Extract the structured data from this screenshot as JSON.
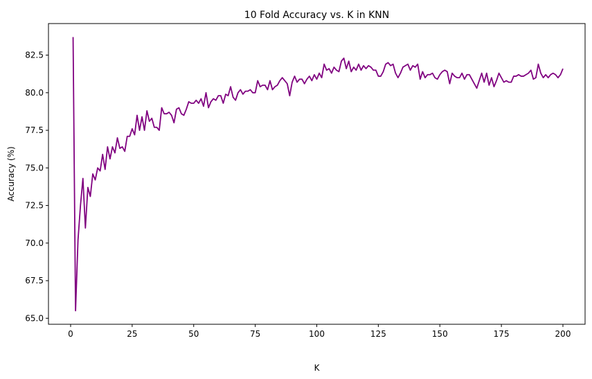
{
  "chart_data": {
    "type": "line",
    "title": "10 Fold Accuracy vs. K in KNN",
    "xlabel": "K",
    "ylabel": "Accuracy (%)",
    "xlim": [
      -9,
      209
    ],
    "ylim": [
      64.6,
      84.6
    ],
    "x_ticks": [
      0,
      25,
      50,
      75,
      100,
      125,
      150,
      175,
      200
    ],
    "y_ticks": [
      65.0,
      67.5,
      70.0,
      72.5,
      75.0,
      77.5,
      80.0,
      82.5
    ],
    "y_tick_labels": [
      "65.0",
      "67.5",
      "70.0",
      "72.5",
      "75.0",
      "77.5",
      "80.0",
      "82.5"
    ],
    "grid": false,
    "legend": "none",
    "series": [
      {
        "color": "#800080",
        "x_start": 1,
        "x_step": 1,
        "values": [
          83.7,
          65.5,
          70.2,
          72.5,
          74.3,
          71.0,
          73.7,
          73.1,
          74.6,
          74.2,
          75.0,
          74.8,
          75.9,
          74.9,
          76.4,
          75.6,
          76.4,
          76.0,
          77.0,
          76.3,
          76.4,
          76.1,
          77.1,
          77.1,
          77.6,
          77.2,
          78.5,
          77.5,
          78.4,
          77.5,
          78.8,
          78.1,
          78.3,
          77.7,
          77.7,
          77.5,
          79.0,
          78.6,
          78.6,
          78.7,
          78.5,
          78.0,
          78.9,
          79.0,
          78.6,
          78.5,
          78.9,
          79.4,
          79.3,
          79.3,
          79.5,
          79.3,
          79.6,
          79.1,
          80.0,
          79.0,
          79.4,
          79.6,
          79.5,
          79.8,
          79.8,
          79.3,
          79.9,
          79.8,
          80.4,
          79.7,
          79.5,
          80.0,
          80.2,
          79.9,
          80.1,
          80.1,
          80.2,
          80.0,
          80.0,
          80.8,
          80.4,
          80.5,
          80.5,
          80.2,
          80.8,
          80.2,
          80.4,
          80.5,
          80.8,
          81.0,
          80.8,
          80.6,
          79.8,
          80.7,
          81.1,
          80.7,
          80.9,
          80.9,
          80.6,
          80.9,
          81.1,
          80.8,
          81.2,
          80.9,
          81.3,
          81.0,
          81.9,
          81.5,
          81.6,
          81.3,
          81.7,
          81.5,
          81.4,
          82.1,
          82.3,
          81.6,
          82.1,
          81.4,
          81.7,
          81.5,
          81.9,
          81.5,
          81.8,
          81.6,
          81.8,
          81.7,
          81.5,
          81.5,
          81.1,
          81.1,
          81.4,
          81.9,
          82.0,
          81.8,
          81.9,
          81.3,
          81.0,
          81.3,
          81.7,
          81.8,
          81.9,
          81.5,
          81.8,
          81.7,
          81.9,
          80.9,
          81.4,
          81.0,
          81.2,
          81.2,
          81.3,
          81.0,
          80.9,
          81.2,
          81.4,
          81.5,
          81.4,
          80.6,
          81.3,
          81.1,
          81.0,
          81.0,
          81.3,
          80.9,
          81.2,
          81.2,
          80.9,
          80.6,
          80.3,
          80.8,
          81.3,
          80.7,
          81.3,
          80.5,
          81.0,
          80.4,
          80.8,
          81.3,
          81.0,
          80.7,
          80.8,
          80.7,
          80.7,
          81.1,
          81.1,
          81.2,
          81.1,
          81.1,
          81.2,
          81.3,
          81.5,
          80.9,
          81.0,
          81.9,
          81.3,
          81.0,
          81.2,
          81.0,
          81.2,
          81.3,
          81.2,
          81.0,
          81.2,
          81.6
        ]
      }
    ]
  }
}
